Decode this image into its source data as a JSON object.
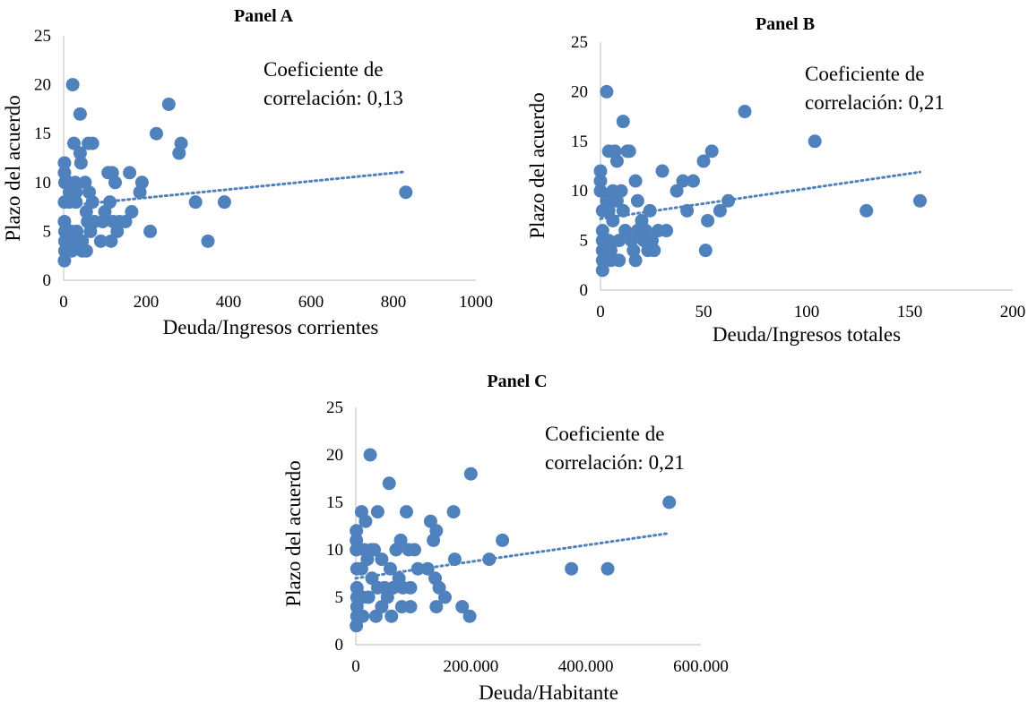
{
  "colors": {
    "marker": "#4f81bd",
    "trend": "#4f81bd",
    "axis": "#c8c8c8"
  },
  "chart_data": [
    {
      "type": "scatter",
      "title": "Panel A",
      "xlabel": "Deuda/Ingresos corrientes",
      "ylabel": "Plazo del acuerdo",
      "xlim": [
        0,
        1000
      ],
      "ylim": [
        0,
        25
      ],
      "xticks": [
        0,
        200,
        400,
        600,
        800,
        1000
      ],
      "xtick_labels": [
        "0",
        "200",
        "400",
        "600",
        "800",
        "1000"
      ],
      "yticks": [
        0,
        5,
        10,
        15,
        20,
        25
      ],
      "ytick_labels": [
        "0",
        "5",
        "10",
        "15",
        "20",
        "25"
      ],
      "annotation": [
        "Coeficiente de",
        "correlación: 0,13"
      ],
      "trendline": {
        "style": "dotted",
        "x": [
          0,
          830
        ],
        "y": [
          7.6,
          11.1
        ]
      },
      "series": [
        {
          "points": [
            [
              2,
              12
            ],
            [
              2,
              11
            ],
            [
              3,
              10
            ],
            [
              2,
              8
            ],
            [
              2,
              6
            ],
            [
              3,
              5
            ],
            [
              3,
              4
            ],
            [
              3,
              3
            ],
            [
              2,
              2
            ],
            [
              12,
              10
            ],
            [
              14,
              9
            ],
            [
              14,
              8
            ],
            [
              18,
              5
            ],
            [
              18,
              4
            ],
            [
              20,
              3
            ],
            [
              22,
              20
            ],
            [
              25,
              14
            ],
            [
              28,
              10
            ],
            [
              30,
              9
            ],
            [
              30,
              8
            ],
            [
              32,
              5
            ],
            [
              33,
              4
            ],
            [
              40,
              17
            ],
            [
              40,
              13
            ],
            [
              42,
              12
            ],
            [
              45,
              4
            ],
            [
              45,
              3
            ],
            [
              52,
              10
            ],
            [
              55,
              7
            ],
            [
              55,
              3
            ],
            [
              58,
              6
            ],
            [
              60,
              14
            ],
            [
              62,
              9
            ],
            [
              65,
              5
            ],
            [
              70,
              14
            ],
            [
              70,
              8
            ],
            [
              75,
              6
            ],
            [
              90,
              4
            ],
            [
              95,
              6
            ],
            [
              100,
              7
            ],
            [
              108,
              11
            ],
            [
              112,
              8
            ],
            [
              115,
              4
            ],
            [
              118,
              11
            ],
            [
              120,
              6
            ],
            [
              125,
              10
            ],
            [
              130,
              5
            ],
            [
              135,
              6
            ],
            [
              150,
              6
            ],
            [
              160,
              11
            ],
            [
              165,
              7
            ],
            [
              185,
              9
            ],
            [
              190,
              10
            ],
            [
              210,
              5
            ],
            [
              225,
              15
            ],
            [
              255,
              18
            ],
            [
              280,
              13
            ],
            [
              285,
              14
            ],
            [
              320,
              8
            ],
            [
              350,
              4
            ],
            [
              390,
              8
            ],
            [
              830,
              9
            ]
          ]
        }
      ]
    },
    {
      "type": "scatter",
      "title": "Panel B",
      "xlabel": "Deuda/Ingresos totales",
      "ylabel": "Plazo del acuerdo",
      "xlim": [
        0,
        200
      ],
      "ylim": [
        0,
        25
      ],
      "xticks": [
        0,
        50,
        100,
        150,
        200
      ],
      "xtick_labels": [
        "0",
        "50",
        "100",
        "150",
        "200"
      ],
      "yticks": [
        0,
        5,
        10,
        15,
        20,
        25
      ],
      "ytick_labels": [
        "0",
        "5",
        "10",
        "15",
        "20",
        "25"
      ],
      "annotation": [
        "Coeficiente de",
        "correlación: 0,21"
      ],
      "trendline": {
        "style": "dotted",
        "x": [
          0,
          155
        ],
        "y": [
          7.2,
          11.9
        ]
      },
      "series": [
        {
          "points": [
            [
              0,
              12
            ],
            [
              0,
              11
            ],
            [
              0,
              10
            ],
            [
              1,
              8
            ],
            [
              1,
              6
            ],
            [
              1,
              5
            ],
            [
              1,
              4
            ],
            [
              1,
              3
            ],
            [
              1,
              2
            ],
            [
              3,
              20
            ],
            [
              3,
              9
            ],
            [
              4,
              14
            ],
            [
              4,
              8
            ],
            [
              4,
              5
            ],
            [
              5,
              4
            ],
            [
              5,
              3
            ],
            [
              6,
              10
            ],
            [
              6,
              7
            ],
            [
              7,
              14
            ],
            [
              8,
              13
            ],
            [
              8,
              9
            ],
            [
              9,
              5
            ],
            [
              9,
              3
            ],
            [
              10,
              10
            ],
            [
              11,
              17
            ],
            [
              11,
              8
            ],
            [
              12,
              6
            ],
            [
              13,
              14
            ],
            [
              14,
              14
            ],
            [
              15,
              5
            ],
            [
              16,
              4
            ],
            [
              17,
              11
            ],
            [
              17,
              3
            ],
            [
              18,
              9
            ],
            [
              18,
              6
            ],
            [
              20,
              7
            ],
            [
              21,
              5
            ],
            [
              22,
              6
            ],
            [
              23,
              4
            ],
            [
              24,
              8
            ],
            [
              25,
              5
            ],
            [
              26,
              4
            ],
            [
              28,
              6
            ],
            [
              30,
              12
            ],
            [
              32,
              6
            ],
            [
              37,
              10
            ],
            [
              40,
              11
            ],
            [
              42,
              8
            ],
            [
              45,
              11
            ],
            [
              50,
              13
            ],
            [
              51,
              4
            ],
            [
              52,
              7
            ],
            [
              54,
              14
            ],
            [
              58,
              8
            ],
            [
              62,
              9
            ],
            [
              70,
              18
            ],
            [
              104,
              15
            ],
            [
              129,
              8
            ],
            [
              155,
              9
            ]
          ]
        }
      ]
    },
    {
      "type": "scatter",
      "title": "Panel C",
      "xlabel": "Deuda/Habitante",
      "ylabel": "Plazo del acuerdo",
      "xlim": [
        0,
        600000
      ],
      "ylim": [
        0,
        25
      ],
      "xticks": [
        0,
        200000,
        400000,
        600000
      ],
      "xtick_labels": [
        "0",
        "200.000",
        "400.000",
        "600.000"
      ],
      "yticks": [
        0,
        5,
        10,
        15,
        20,
        25
      ],
      "ytick_labels": [
        "0",
        "5",
        "10",
        "15",
        "20",
        "25"
      ],
      "annotation": [
        "Coeficiente de",
        "correlación: 0,21"
      ],
      "trendline": {
        "style": "dotted",
        "x": [
          0,
          540000
        ],
        "y": [
          7.0,
          11.7
        ]
      },
      "series": [
        {
          "points": [
            [
              1000,
              12
            ],
            [
              1000,
              11
            ],
            [
              1000,
              10
            ],
            [
              2000,
              8
            ],
            [
              2000,
              6
            ],
            [
              2000,
              5
            ],
            [
              2000,
              4
            ],
            [
              2000,
              3
            ],
            [
              1000,
              2
            ],
            [
              10000,
              14
            ],
            [
              10000,
              8
            ],
            [
              12000,
              5
            ],
            [
              12000,
              3
            ],
            [
              15000,
              10
            ],
            [
              17000,
              13
            ],
            [
              20000,
              9
            ],
            [
              22000,
              5
            ],
            [
              25000,
              20
            ],
            [
              27000,
              10
            ],
            [
              28000,
              7
            ],
            [
              32000,
              10
            ],
            [
              35000,
              3
            ],
            [
              38000,
              14
            ],
            [
              38000,
              6
            ],
            [
              45000,
              9
            ],
            [
              45000,
              4
            ],
            [
              50000,
              6
            ],
            [
              55000,
              5
            ],
            [
              58000,
              17
            ],
            [
              60000,
              8
            ],
            [
              62000,
              3
            ],
            [
              65000,
              6
            ],
            [
              70000,
              10
            ],
            [
              75000,
              7
            ],
            [
              78000,
              11
            ],
            [
              80000,
              4
            ],
            [
              82000,
              6
            ],
            [
              88000,
              14
            ],
            [
              92000,
              10
            ],
            [
              95000,
              6
            ],
            [
              95000,
              4
            ],
            [
              102000,
              10
            ],
            [
              108000,
              8
            ],
            [
              125000,
              8
            ],
            [
              130000,
              13
            ],
            [
              135000,
              11
            ],
            [
              138000,
              7
            ],
            [
              140000,
              12
            ],
            [
              140000,
              4
            ],
            [
              145000,
              6
            ],
            [
              155000,
              5
            ],
            [
              170000,
              14
            ],
            [
              172000,
              9
            ],
            [
              185000,
              4
            ],
            [
              198000,
              3
            ],
            [
              200000,
              18
            ],
            [
              232000,
              9
            ],
            [
              255000,
              11
            ],
            [
              375000,
              8
            ],
            [
              438000,
              8
            ],
            [
              545000,
              15
            ]
          ]
        }
      ]
    }
  ]
}
